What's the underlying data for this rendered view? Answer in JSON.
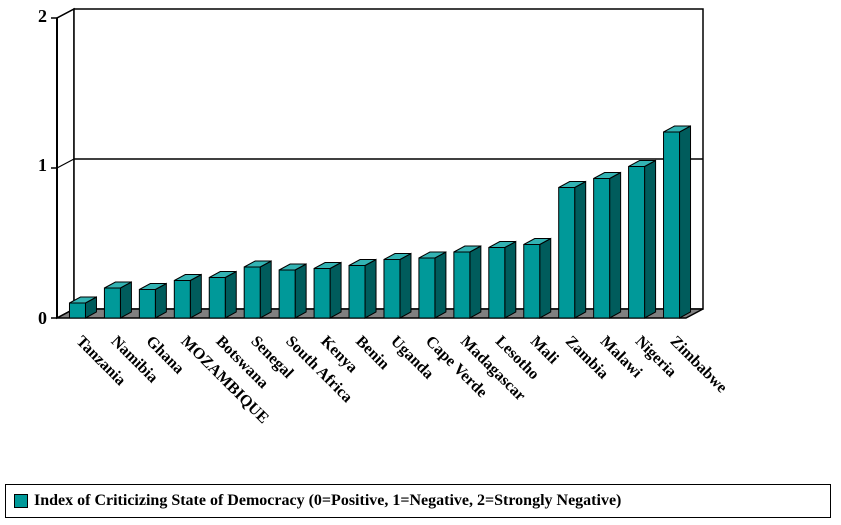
{
  "chart_data": {
    "type": "bar",
    "categories": [
      "Tanzania",
      "Namibia",
      "Ghana",
      "MOZAMBIQUE",
      "Botswana",
      "Senegal",
      "South Africa",
      "Kenya",
      "Benin",
      "Uganda",
      "Cape Verde",
      "Madagascar",
      "Lesotho",
      "Mali",
      "Zambia",
      "Malawi",
      "Nigeria",
      "Zimbabwe"
    ],
    "series": [
      {
        "name": "Index of Criticizing State of Democracy (0=Positive, 1=Negative, 2=Strongly Negative)",
        "values": [
          0.1,
          0.2,
          0.19,
          0.25,
          0.27,
          0.34,
          0.32,
          0.33,
          0.35,
          0.39,
          0.4,
          0.44,
          0.47,
          0.49,
          0.87,
          0.93,
          1.01,
          1.24
        ]
      }
    ],
    "y_ticks": [
      "0",
      "1",
      "2"
    ],
    "ylim": [
      0,
      2
    ],
    "grid": "horizontal at 1",
    "legend_position": "bottom",
    "colors": {
      "bar_front": "#009999",
      "bar_side": "#005c5c",
      "bar_top": "#33b3b3",
      "floor": "#808080",
      "outline": "#000000"
    }
  }
}
